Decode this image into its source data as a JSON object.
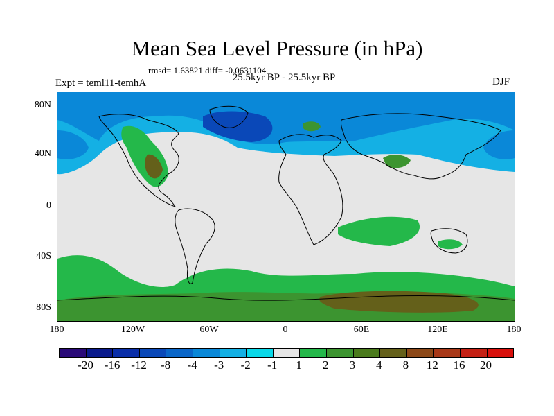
{
  "title": "Mean Sea Level Pressure (in hPa)",
  "stats": "rmsd= 1.63821 diff= -0.0631104",
  "period": "25.5kyr BP - 25.5kyr BP",
  "experiment": "Expt = teml11-temhA",
  "season": "DJF",
  "lat_labels": [
    "80N",
    "40N",
    "0",
    "40S",
    "80S"
  ],
  "lon_labels": [
    "180",
    "120W",
    "60W",
    "0",
    "60E",
    "120E",
    "180"
  ],
  "colorbar": {
    "colors": [
      "#2a0a78",
      "#0a1a8c",
      "#0a2ea8",
      "#0a48b8",
      "#0a66c8",
      "#0a88d8",
      "#14b0e4",
      "#0ad8e8",
      "#e6e6e6",
      "#24b84a",
      "#3c9430",
      "#4a7a1c",
      "#64601a",
      "#8c4818",
      "#a83818",
      "#c42014",
      "#d8100c"
    ],
    "labels": [
      "-20",
      "-16",
      "-12",
      "-8",
      "-4",
      "-3",
      "-2",
      "-1",
      "1",
      "2",
      "3",
      "4",
      "8",
      "12",
      "16",
      "20"
    ]
  },
  "colors": {
    "neutral": "#e6e6e6",
    "neg_light": "#14b0e4",
    "neg_mid": "#0a88d8",
    "neg_strong": "#0a48b8",
    "pos_light": "#24b84a",
    "pos_mid": "#3c9430",
    "pos_strong": "#64601a"
  }
}
